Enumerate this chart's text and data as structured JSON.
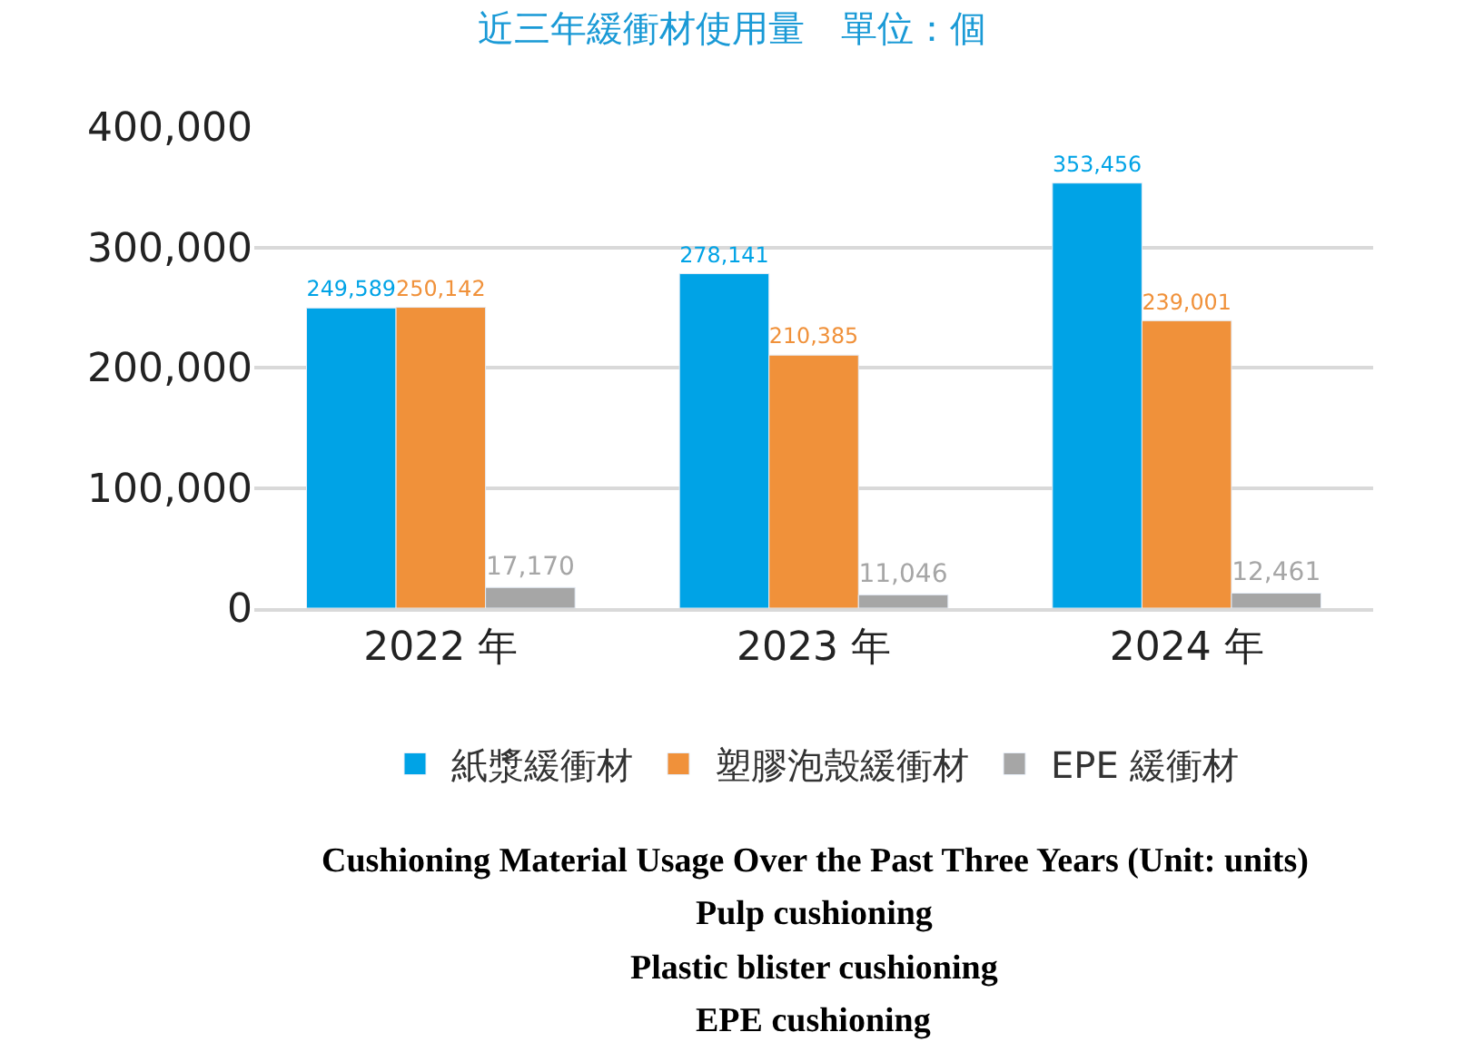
{
  "chart_data": {
    "type": "bar",
    "title": "近三年緩衝材使用量　單位：個",
    "categories": [
      "2022 年",
      "2023 年",
      "2024 年"
    ],
    "series": [
      {
        "name": "紙漿緩衝材",
        "color": "#00a3e6",
        "values": [
          249589,
          278141,
          353456
        ],
        "value_labels": [
          "249,589",
          "278,141",
          "353,456"
        ]
      },
      {
        "name": "塑膠泡殼緩衝材",
        "color": "#f0913a",
        "values": [
          250142,
          210385,
          239001
        ],
        "value_labels": [
          "250,142",
          "210,385",
          "239,001"
        ]
      },
      {
        "name": "EPE 緩衝材",
        "color": "#a6a6a6",
        "values": [
          17170,
          11046,
          12461
        ],
        "value_labels": [
          "17,170",
          "11,046",
          "12,461"
        ]
      }
    ],
    "ylim": [
      0,
      400000
    ],
    "yticks": [
      {
        "value": 0,
        "label": "0"
      },
      {
        "value": 100000,
        "label": "100,000"
      },
      {
        "value": 200000,
        "label": "200,000"
      },
      {
        "value": 300000,
        "label": "300,000"
      },
      {
        "value": 400000,
        "label": "400,000"
      }
    ],
    "grid": "y",
    "legend": "bottom",
    "annotations": [
      "Cushioning Material Usage Over the Past Three Years (Unit: units)",
      "Pulp cushioning",
      "Plastic blister cushioning",
      "EPE cushioning"
    ]
  }
}
